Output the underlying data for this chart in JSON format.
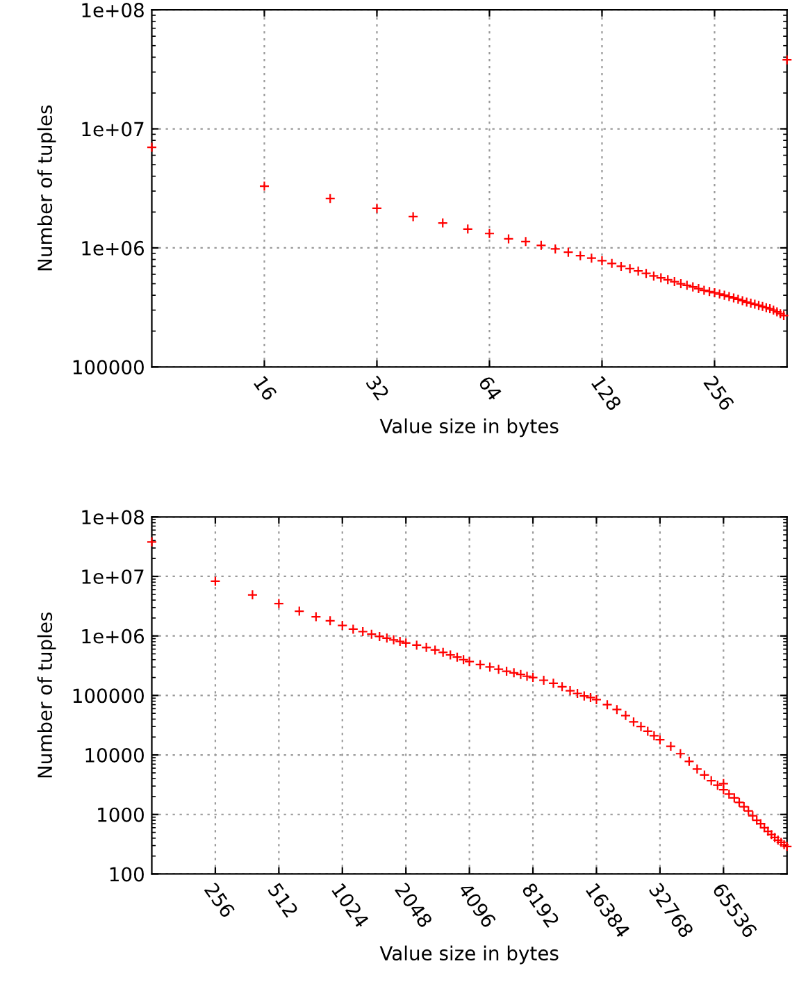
{
  "chart_data": [
    {
      "type": "scatter",
      "xlabel": "Value size in bytes",
      "ylabel": "Number of tuples",
      "log": "xy",
      "grid": true,
      "marker": "cross",
      "legend": false,
      "xlim": [
        8,
        400
      ],
      "xticks": [
        16,
        32,
        64,
        128,
        256
      ],
      "ylim": [
        100000,
        100000000
      ],
      "yticks": [
        100000,
        {
          "value": 1000000,
          "label": "1e+06"
        },
        {
          "value": 10000000,
          "label": "1e+07"
        },
        {
          "value": 100000000,
          "label": "1e+08"
        }
      ],
      "series": [
        {
          "color": "#ff0000",
          "x": [
            8,
            16,
            24,
            32,
            40,
            48,
            56,
            64,
            72,
            80,
            88,
            96,
            104,
            112,
            120,
            128,
            136,
            144,
            152,
            160,
            168,
            176,
            184,
            192,
            200,
            208,
            216,
            224,
            232,
            240,
            248,
            256,
            264,
            272,
            280,
            288,
            296,
            304,
            312,
            320,
            328,
            336,
            344,
            352,
            360,
            368,
            376,
            384,
            392,
            400
          ],
          "values": [
            7000000,
            3300000,
            2600000,
            2150000,
            1830000,
            1620000,
            1440000,
            1320000,
            1190000,
            1130000,
            1050000,
            980000,
            920000,
            860000,
            820000,
            780000,
            740000,
            700000,
            670000,
            640000,
            610000,
            580000,
            560000,
            540000,
            520000,
            500000,
            485000,
            470000,
            455000,
            440000,
            430000,
            420000,
            410000,
            400000,
            390000,
            380000,
            370000,
            360000,
            350000,
            343000,
            336000,
            329000,
            322000,
            315000,
            308000,
            300000,
            290000,
            280000,
            270000,
            38000000
          ]
        }
      ]
    },
    {
      "type": "scatter",
      "xlabel": "Value size in bytes",
      "ylabel": "Number of tuples",
      "log": "xy",
      "grid": true,
      "marker": "cross",
      "legend": false,
      "xlim": [
        128,
        131072
      ],
      "xticks": [
        256,
        512,
        1024,
        2048,
        4096,
        8192,
        16384,
        32768,
        65536
      ],
      "ylim": [
        100,
        100000000
      ],
      "yticks": [
        100,
        1000,
        10000,
        100000,
        {
          "value": 1000000,
          "label": "1e+06"
        },
        {
          "value": 10000000,
          "label": "1e+07"
        },
        {
          "value": 100000000,
          "label": "1e+08"
        }
      ],
      "series": [
        {
          "color": "#ff0000",
          "x": [
            128,
            256,
            384,
            512,
            640,
            768,
            896,
            1024,
            1152,
            1280,
            1408,
            1536,
            1664,
            1792,
            1920,
            2048,
            2304,
            2560,
            2816,
            3072,
            3328,
            3584,
            3840,
            4096,
            4608,
            5120,
            5632,
            6144,
            6656,
            7168,
            7680,
            8192,
            9216,
            10240,
            11264,
            12288,
            13312,
            14336,
            15360,
            16384,
            18432,
            20480,
            22528,
            24576,
            26624,
            28672,
            30720,
            32768,
            36864,
            40960,
            45056,
            49152,
            53248,
            57344,
            61440,
            65536,
            65536,
            69632,
            73728,
            77824,
            81920,
            86016,
            90112,
            94208,
            98304,
            102400,
            106496,
            110592,
            114688,
            118784,
            122880,
            126976,
            131072
          ],
          "values": [
            38000000,
            8300000,
            4900000,
            3500000,
            2600000,
            2100000,
            1800000,
            1500000,
            1300000,
            1180000,
            1070000,
            980000,
            920000,
            860000,
            810000,
            760000,
            700000,
            640000,
            580000,
            530000,
            480000,
            440000,
            400000,
            370000,
            330000,
            300000,
            275000,
            255000,
            240000,
            225000,
            210000,
            200000,
            180000,
            160000,
            140000,
            120000,
            108000,
            98000,
            92000,
            85000,
            70000,
            58000,
            46000,
            36000,
            30000,
            25000,
            21000,
            18000,
            14000,
            10500,
            7800,
            5800,
            4600,
            3700,
            3100,
            2600,
            3300,
            2200,
            1900,
            1600,
            1350,
            1150,
            950,
            800,
            700,
            600,
            520,
            460,
            410,
            370,
            340,
            310,
            290
          ]
        }
      ]
    }
  ]
}
